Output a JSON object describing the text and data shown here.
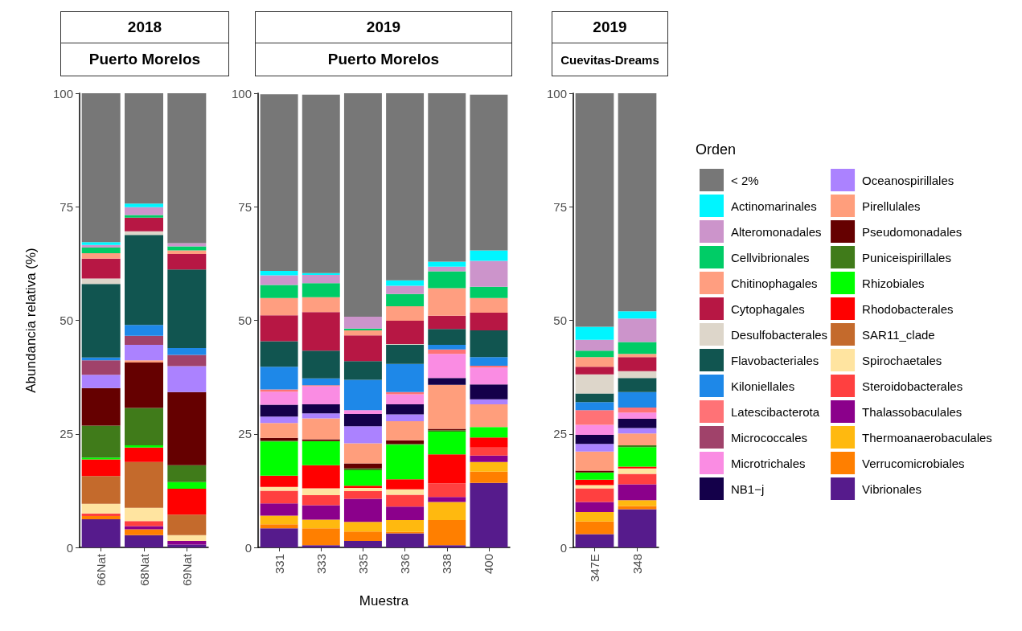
{
  "chart_data": [
    {
      "type": "bar",
      "title": "2018",
      "subtitle": "Puerto Morelos",
      "ylabel": "Abundancia relativa (%)",
      "stacked": true,
      "grid": false,
      "legend": false,
      "categories": [
        "66Nat",
        "68Nat",
        "69Nat"
      ],
      "ylim": [
        0,
        100
      ],
      "yticks": [
        0,
        25,
        50,
        75,
        100
      ],
      "series": [
        {
          "color": "#561b8c",
          "values": [
            6.2,
            2.7,
            0.6
          ]
        },
        {
          "color": "#ff7f00",
          "values": [
            0.7,
            1.3,
            null
          ]
        },
        {
          "color": "#ffb90f",
          "values": [
            null,
            null,
            null
          ]
        },
        {
          "color": "#8b008b",
          "values": [
            null,
            0.7,
            0.8
          ]
        },
        {
          "color": "#ff4040",
          "values": [
            0.6,
            1.1,
            null
          ]
        },
        {
          "color": "#ffe4a0",
          "values": [
            2.1,
            2.9,
            1.3
          ]
        },
        {
          "color": "#c46a2c",
          "values": [
            6.1,
            10.1,
            4.5
          ]
        },
        {
          "color": "#ff0000",
          "values": [
            3.7,
            3.2,
            5.7
          ]
        },
        {
          "color": "#00ff00",
          "values": [
            0.4,
            0.5,
            1.5
          ]
        },
        {
          "color": "#407b1a",
          "values": [
            7.0,
            8.2,
            3.7
          ]
        },
        {
          "color": "#650000",
          "values": [
            8.3,
            10.0,
            16.1
          ]
        },
        {
          "color": "#ff9e7c",
          "values": [
            null,
            0.5,
            null
          ]
        },
        {
          "color": "#ab82ff",
          "values": [
            2.9,
            3.4,
            5.7
          ]
        },
        {
          "color": "#14004a",
          "values": [
            null,
            null,
            null
          ]
        },
        {
          "color": "#fa8ce3",
          "values": [
            null,
            null,
            null
          ]
        },
        {
          "color": "#a0426a",
          "values": [
            3.2,
            2.0,
            2.5
          ]
        },
        {
          "color": "#ff7276",
          "values": [
            null,
            null,
            null
          ]
        },
        {
          "color": "#1e88e8",
          "values": [
            0.6,
            2.4,
            1.5
          ]
        },
        {
          "color": "#115550",
          "values": [
            16.2,
            19.8,
            17.3
          ]
        },
        {
          "color": "#ddd6ca",
          "values": [
            1.2,
            0.8,
            null
          ]
        },
        {
          "color": "#b71744",
          "values": [
            4.4,
            3.0,
            3.4
          ]
        },
        {
          "color": "#ff9e80",
          "values": [
            1.2,
            null,
            0.8
          ]
        },
        {
          "color": "#00cc66",
          "values": [
            1.2,
            0.6,
            0.9
          ]
        },
        {
          "color": "#cc94cb",
          "values": [
            0.6,
            1.7,
            0.7
          ]
        },
        {
          "color": "#00f5ff",
          "values": [
            0.6,
            0.8,
            null
          ]
        },
        {
          "color": "#777777",
          "values": [
            32.8,
            24.3,
            33.0
          ]
        }
      ]
    },
    {
      "type": "bar",
      "title": "2019",
      "subtitle": "Puerto Morelos",
      "xlabel": "Muestra",
      "stacked": true,
      "grid": false,
      "legend": false,
      "categories": [
        "331",
        "333",
        "335",
        "336",
        "338",
        "400"
      ],
      "ylim": [
        0,
        100
      ],
      "yticks": [
        0,
        25,
        50,
        75,
        100
      ],
      "series": [
        {
          "color": "#561b8c",
          "values": [
            4.2,
            0.5,
            1.4,
            3.1,
            0.5,
            14.2
          ]
        },
        {
          "color": "#ff7f00",
          "values": [
            0.9,
            3.7,
            2.1,
            0.3,
            5.5,
            2.5
          ]
        },
        {
          "color": "#ffb90f",
          "values": [
            1.9,
            1.9,
            2.1,
            2.6,
            4.0,
            2.1
          ]
        },
        {
          "color": "#8b008b",
          "values": [
            2.7,
            3.2,
            5.1,
            3.0,
            1.1,
            1.4
          ]
        },
        {
          "color": "#ff4040",
          "values": [
            2.8,
            2.2,
            1.7,
            2.6,
            3.0,
            1.8
          ]
        },
        {
          "color": "#ffe4a0",
          "values": [
            0.8,
            1.5,
            0.7,
            1.2,
            null,
            null
          ]
        },
        {
          "color": "#c46a2c",
          "values": [
            null,
            null,
            null,
            null,
            null,
            null
          ]
        },
        {
          "color": "#ff0000",
          "values": [
            2.5,
            5.1,
            0.5,
            2.2,
            6.4,
            2.2
          ]
        },
        {
          "color": "#00ff00",
          "values": [
            7.5,
            5.3,
            3.4,
            7.6,
            5.0,
            2.3
          ]
        },
        {
          "color": "#407b1a",
          "values": [
            0.2,
            null,
            0.4,
            0.2,
            0.3,
            null
          ]
        },
        {
          "color": "#650000",
          "values": [
            0.6,
            0.4,
            1.1,
            0.8,
            0.3,
            null
          ]
        },
        {
          "color": "#ff9e7c",
          "values": [
            3.3,
            4.6,
            4.4,
            4.2,
            9.7,
            5.0
          ]
        },
        {
          "color": "#ab82ff",
          "values": [
            1.4,
            1.1,
            3.8,
            1.5,
            null,
            1.1
          ]
        },
        {
          "color": "#14004a",
          "values": [
            2.6,
            2.0,
            2.7,
            2.2,
            1.5,
            3.3
          ]
        },
        {
          "color": "#fa8ce3",
          "values": [
            2.9,
            4.0,
            0.8,
            2.2,
            5.3,
            3.7
          ]
        },
        {
          "color": "#a0426a",
          "values": [
            null,
            null,
            null,
            null,
            null,
            null
          ]
        },
        {
          "color": "#ff7276",
          "values": [
            0.5,
            0.2,
            null,
            0.5,
            1.0,
            0.4
          ]
        },
        {
          "color": "#1e88e8",
          "values": [
            5.0,
            1.5,
            6.7,
            6.2,
            1.0,
            1.9
          ]
        },
        {
          "color": "#115550",
          "values": [
            5.6,
            6.1,
            4.1,
            4.2,
            3.5,
            5.9
          ]
        },
        {
          "color": "#ddd6ca",
          "values": [
            null,
            null,
            null,
            0.2,
            null,
            null
          ]
        },
        {
          "color": "#b71744",
          "values": [
            5.7,
            8.5,
            5.7,
            5.1,
            2.9,
            3.9
          ]
        },
        {
          "color": "#ff9e80",
          "values": [
            3.8,
            3.3,
            1.1,
            3.2,
            6.1,
            3.2
          ]
        },
        {
          "color": "#00cc66",
          "values": [
            2.9,
            3.1,
            0.4,
            2.7,
            3.7,
            2.5
          ]
        },
        {
          "color": "#cc94cb",
          "values": [
            2.1,
            1.8,
            2.6,
            1.8,
            1.0,
            5.7
          ]
        },
        {
          "color": "#00f5ff",
          "values": [
            1.0,
            0.4,
            null,
            1.2,
            1.1,
            2.3
          ]
        },
        {
          "color": "#777777",
          "values": [
            38.9,
            39.3,
            49.2,
            41.2,
            37.1,
            34.3
          ]
        }
      ]
    },
    {
      "type": "bar",
      "title": "2019",
      "subtitle": "Cuevitas-Dreams",
      "legend_title": "Orden",
      "stacked": true,
      "grid": false,
      "legend": "right",
      "categories": [
        "347E",
        "348"
      ],
      "ylim": [
        0,
        100
      ],
      "yticks": [
        0,
        25,
        50,
        75,
        100
      ],
      "series": [
        {
          "name": "Vibrionales",
          "color": "#561b8c",
          "values": [
            2.9,
            8.4
          ]
        },
        {
          "name": "Verrucomicrobiales",
          "color": "#ff7f00",
          "values": [
            2.8,
            0.7
          ]
        },
        {
          "name": "Thermoanaerobaculales",
          "color": "#ffb90f",
          "values": [
            2.1,
            1.3
          ]
        },
        {
          "name": "Thalassobaculales",
          "color": "#8b008b",
          "values": [
            2.2,
            3.5
          ]
        },
        {
          "name": "Steroidobacterales",
          "color": "#ff4040",
          "values": [
            3.0,
            2.3
          ]
        },
        {
          "name": "Spirochaetales",
          "color": "#ffe4a0",
          "values": [
            0.7,
            1.2
          ]
        },
        {
          "name": "SAR11_clade",
          "color": "#c46a2c",
          "values": [
            null,
            null
          ]
        },
        {
          "name": "Rhodobacterales",
          "color": "#ff0000",
          "values": [
            1.2,
            0.4
          ]
        },
        {
          "name": "Rhizobiales",
          "color": "#00ff00",
          "values": [
            1.6,
            4.3
          ]
        },
        {
          "name": "Puniceispirillales",
          "color": "#407b1a",
          "values": [
            null,
            0.4
          ]
        },
        {
          "name": "Pseudomonadales",
          "color": "#650000",
          "values": [
            0.4,
            null
          ]
        },
        {
          "name": "Pirellulales",
          "color": "#ff9e7c",
          "values": [
            4.2,
            2.6
          ]
        },
        {
          "name": "Oceanospirillales",
          "color": "#ab82ff",
          "values": [
            1.7,
            1.2
          ]
        },
        {
          "name": "NB1−j",
          "color": "#14004a",
          "values": [
            2.0,
            2.0
          ]
        },
        {
          "name": "Microtrichales",
          "color": "#fa8ce3",
          "values": [
            2.2,
            1.4
          ]
        },
        {
          "name": "Micrococcales",
          "color": "#a0426a",
          "values": [
            null,
            null
          ]
        },
        {
          "name": "Latescibacterota",
          "color": "#ff7276",
          "values": [
            3.2,
            1.1
          ]
        },
        {
          "name": "Kiloniellales",
          "color": "#1e88e8",
          "values": [
            1.8,
            3.4
          ]
        },
        {
          "name": "Flavobacteriales",
          "color": "#115550",
          "values": [
            1.9,
            3.1
          ]
        },
        {
          "name": "Desulfobacterales",
          "color": "#ddd6ca",
          "values": [
            4.2,
            1.5
          ]
        },
        {
          "name": "Cytophagales",
          "color": "#b71744",
          "values": [
            1.7,
            3.1
          ]
        },
        {
          "name": "Chitinophagales",
          "color": "#ff9e80",
          "values": [
            2.1,
            0.7
          ]
        },
        {
          "name": "Cellvibrionales",
          "color": "#00cc66",
          "values": [
            1.4,
            2.6
          ]
        },
        {
          "name": "Alteromonadales",
          "color": "#cc94cb",
          "values": [
            2.4,
            5.2
          ]
        },
        {
          "name": "Actinomarinales",
          "color": "#00f5ff",
          "values": [
            2.9,
            1.6
          ]
        },
        {
          "name": "< 2%",
          "color": "#777777",
          "values": [
            51.4,
            48.0
          ]
        }
      ]
    }
  ]
}
